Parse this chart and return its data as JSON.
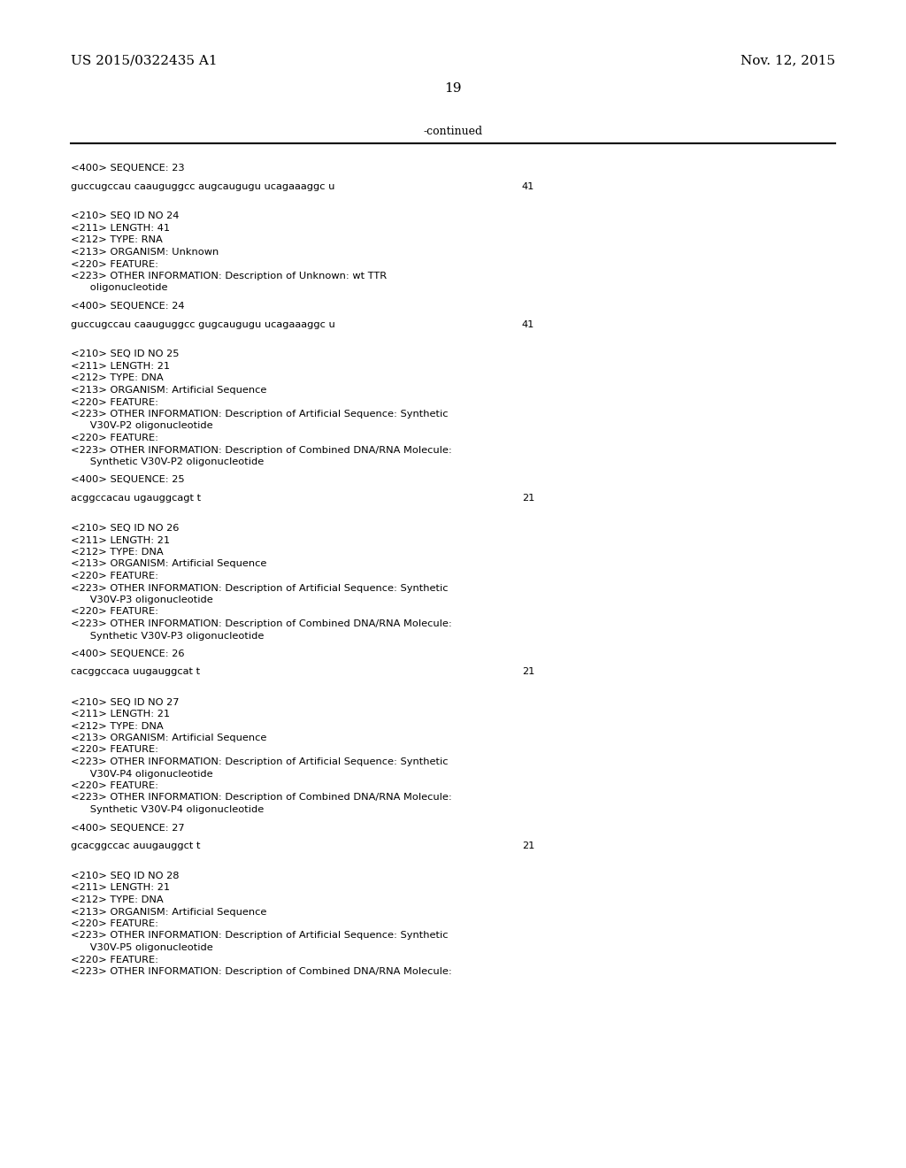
{
  "bg_color": "#ffffff",
  "text_color": "#000000",
  "header_left": "US 2015/0322435 A1",
  "header_right": "Nov. 12, 2015",
  "page_number": "19",
  "continued_text": "-continued",
  "header_font_size": 11,
  "body_font_size": 8.2,
  "page_num_font_size": 11,
  "continued_font_size": 9,
  "line_color": "#000000",
  "content": [
    {
      "text": "<400> SEQUENCE: 23",
      "indent": 0,
      "type": "tag"
    },
    {
      "text": "",
      "indent": 0,
      "type": "blank_small"
    },
    {
      "text": "guccugccau caauguggcc augcaugugu ucagaaaggc u",
      "indent": 0,
      "type": "seq",
      "num": "41"
    },
    {
      "text": "",
      "indent": 0,
      "type": "blank"
    },
    {
      "text": "",
      "indent": 0,
      "type": "blank_small"
    },
    {
      "text": "<210> SEQ ID NO 24",
      "indent": 0,
      "type": "tag"
    },
    {
      "text": "<211> LENGTH: 41",
      "indent": 0,
      "type": "tag"
    },
    {
      "text": "<212> TYPE: RNA",
      "indent": 0,
      "type": "tag"
    },
    {
      "text": "<213> ORGANISM: Unknown",
      "indent": 0,
      "type": "tag"
    },
    {
      "text": "<220> FEATURE:",
      "indent": 0,
      "type": "tag"
    },
    {
      "text": "<223> OTHER INFORMATION: Description of Unknown: wt TTR",
      "indent": 0,
      "type": "tag"
    },
    {
      "text": "      oligonucleotide",
      "indent": 0,
      "type": "tag"
    },
    {
      "text": "",
      "indent": 0,
      "type": "blank_small"
    },
    {
      "text": "<400> SEQUENCE: 24",
      "indent": 0,
      "type": "tag"
    },
    {
      "text": "",
      "indent": 0,
      "type": "blank_small"
    },
    {
      "text": "guccugccau caauguggcc gugcaugugu ucagaaaggc u",
      "indent": 0,
      "type": "seq",
      "num": "41"
    },
    {
      "text": "",
      "indent": 0,
      "type": "blank"
    },
    {
      "text": "",
      "indent": 0,
      "type": "blank_small"
    },
    {
      "text": "<210> SEQ ID NO 25",
      "indent": 0,
      "type": "tag"
    },
    {
      "text": "<211> LENGTH: 21",
      "indent": 0,
      "type": "tag"
    },
    {
      "text": "<212> TYPE: DNA",
      "indent": 0,
      "type": "tag"
    },
    {
      "text": "<213> ORGANISM: Artificial Sequence",
      "indent": 0,
      "type": "tag"
    },
    {
      "text": "<220> FEATURE:",
      "indent": 0,
      "type": "tag"
    },
    {
      "text": "<223> OTHER INFORMATION: Description of Artificial Sequence: Synthetic",
      "indent": 0,
      "type": "tag"
    },
    {
      "text": "      V30V-P2 oligonucleotide",
      "indent": 0,
      "type": "tag"
    },
    {
      "text": "<220> FEATURE:",
      "indent": 0,
      "type": "tag"
    },
    {
      "text": "<223> OTHER INFORMATION: Description of Combined DNA/RNA Molecule:",
      "indent": 0,
      "type": "tag"
    },
    {
      "text": "      Synthetic V30V-P2 oligonucleotide",
      "indent": 0,
      "type": "tag"
    },
    {
      "text": "",
      "indent": 0,
      "type": "blank_small"
    },
    {
      "text": "<400> SEQUENCE: 25",
      "indent": 0,
      "type": "tag"
    },
    {
      "text": "",
      "indent": 0,
      "type": "blank_small"
    },
    {
      "text": "acggccacau ugauggcagt t",
      "indent": 0,
      "type": "seq",
      "num": "21"
    },
    {
      "text": "",
      "indent": 0,
      "type": "blank"
    },
    {
      "text": "",
      "indent": 0,
      "type": "blank_small"
    },
    {
      "text": "<210> SEQ ID NO 26",
      "indent": 0,
      "type": "tag"
    },
    {
      "text": "<211> LENGTH: 21",
      "indent": 0,
      "type": "tag"
    },
    {
      "text": "<212> TYPE: DNA",
      "indent": 0,
      "type": "tag"
    },
    {
      "text": "<213> ORGANISM: Artificial Sequence",
      "indent": 0,
      "type": "tag"
    },
    {
      "text": "<220> FEATURE:",
      "indent": 0,
      "type": "tag"
    },
    {
      "text": "<223> OTHER INFORMATION: Description of Artificial Sequence: Synthetic",
      "indent": 0,
      "type": "tag"
    },
    {
      "text": "      V30V-P3 oligonucleotide",
      "indent": 0,
      "type": "tag"
    },
    {
      "text": "<220> FEATURE:",
      "indent": 0,
      "type": "tag"
    },
    {
      "text": "<223> OTHER INFORMATION: Description of Combined DNA/RNA Molecule:",
      "indent": 0,
      "type": "tag"
    },
    {
      "text": "      Synthetic V30V-P3 oligonucleotide",
      "indent": 0,
      "type": "tag"
    },
    {
      "text": "",
      "indent": 0,
      "type": "blank_small"
    },
    {
      "text": "<400> SEQUENCE: 26",
      "indent": 0,
      "type": "tag"
    },
    {
      "text": "",
      "indent": 0,
      "type": "blank_small"
    },
    {
      "text": "cacggccaca uugauggcat t",
      "indent": 0,
      "type": "seq",
      "num": "21"
    },
    {
      "text": "",
      "indent": 0,
      "type": "blank"
    },
    {
      "text": "",
      "indent": 0,
      "type": "blank_small"
    },
    {
      "text": "<210> SEQ ID NO 27",
      "indent": 0,
      "type": "tag"
    },
    {
      "text": "<211> LENGTH: 21",
      "indent": 0,
      "type": "tag"
    },
    {
      "text": "<212> TYPE: DNA",
      "indent": 0,
      "type": "tag"
    },
    {
      "text": "<213> ORGANISM: Artificial Sequence",
      "indent": 0,
      "type": "tag"
    },
    {
      "text": "<220> FEATURE:",
      "indent": 0,
      "type": "tag"
    },
    {
      "text": "<223> OTHER INFORMATION: Description of Artificial Sequence: Synthetic",
      "indent": 0,
      "type": "tag"
    },
    {
      "text": "      V30V-P4 oligonucleotide",
      "indent": 0,
      "type": "tag"
    },
    {
      "text": "<220> FEATURE:",
      "indent": 0,
      "type": "tag"
    },
    {
      "text": "<223> OTHER INFORMATION: Description of Combined DNA/RNA Molecule:",
      "indent": 0,
      "type": "tag"
    },
    {
      "text": "      Synthetic V30V-P4 oligonucleotide",
      "indent": 0,
      "type": "tag"
    },
    {
      "text": "",
      "indent": 0,
      "type": "blank_small"
    },
    {
      "text": "<400> SEQUENCE: 27",
      "indent": 0,
      "type": "tag"
    },
    {
      "text": "",
      "indent": 0,
      "type": "blank_small"
    },
    {
      "text": "gcacggccac auugauggct t",
      "indent": 0,
      "type": "seq",
      "num": "21"
    },
    {
      "text": "",
      "indent": 0,
      "type": "blank"
    },
    {
      "text": "",
      "indent": 0,
      "type": "blank_small"
    },
    {
      "text": "<210> SEQ ID NO 28",
      "indent": 0,
      "type": "tag"
    },
    {
      "text": "<211> LENGTH: 21",
      "indent": 0,
      "type": "tag"
    },
    {
      "text": "<212> TYPE: DNA",
      "indent": 0,
      "type": "tag"
    },
    {
      "text": "<213> ORGANISM: Artificial Sequence",
      "indent": 0,
      "type": "tag"
    },
    {
      "text": "<220> FEATURE:",
      "indent": 0,
      "type": "tag"
    },
    {
      "text": "<223> OTHER INFORMATION: Description of Artificial Sequence: Synthetic",
      "indent": 0,
      "type": "tag"
    },
    {
      "text": "      V30V-P5 oligonucleotide",
      "indent": 0,
      "type": "tag"
    },
    {
      "text": "<220> FEATURE:",
      "indent": 0,
      "type": "tag"
    },
    {
      "text": "<223> OTHER INFORMATION: Description of Combined DNA/RNA Molecule:",
      "indent": 0,
      "type": "tag"
    }
  ]
}
